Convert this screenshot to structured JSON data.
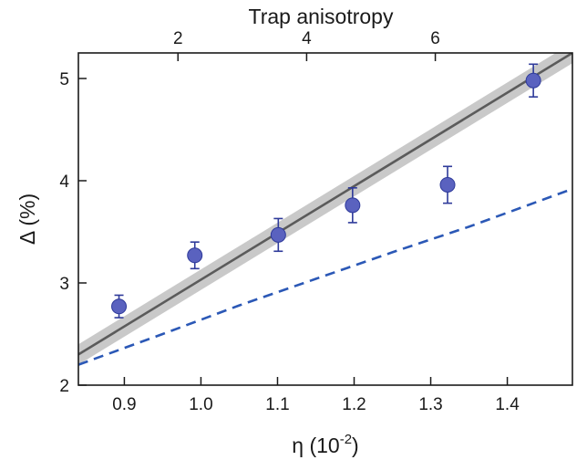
{
  "chart_data": {
    "type": "scatter",
    "title": "",
    "xlabel": "η (10",
    "xlabel_exponent": "-2",
    "xlabel_close": ")",
    "ylabel": "Δ (%)",
    "top_xlabel": "Trap anisotropy",
    "xlim": [
      0.84,
      1.485
    ],
    "ylim": [
      2.0,
      5.25
    ],
    "x_ticks": [
      0.9,
      1.0,
      1.1,
      1.2,
      1.3,
      1.4
    ],
    "x_tick_labels": [
      "0.9",
      "1.0",
      "1.1",
      "1.2",
      "1.3",
      "1.4"
    ],
    "y_ticks": [
      2,
      3,
      4,
      5
    ],
    "y_tick_labels": [
      "2",
      "3",
      "4",
      "5"
    ],
    "top_ticks": [
      {
        "x": 0.97,
        "label": "2"
      },
      {
        "x": 1.138,
        "label": "4"
      },
      {
        "x": 1.306,
        "label": "6"
      }
    ],
    "grid": false,
    "series": [
      {
        "kind": "points",
        "color": "#5a62bf",
        "edge_color": "#2e3a9a",
        "points": [
          {
            "x": 0.893,
            "y": 2.77,
            "err": 0.11
          },
          {
            "x": 0.992,
            "y": 3.27,
            "err": 0.13
          },
          {
            "x": 1.101,
            "y": 3.47,
            "err": 0.16
          },
          {
            "x": 1.198,
            "y": 3.76,
            "err": 0.17
          },
          {
            "x": 1.322,
            "y": 3.96,
            "err": 0.18
          },
          {
            "x": 1.434,
            "y": 4.98,
            "err": 0.16
          }
        ]
      },
      {
        "kind": "band_line",
        "line_color": "#5b5b5b",
        "band_color": "#c9c9c9",
        "band_half_width": 0.1,
        "x": [
          0.84,
          1.485
        ],
        "y": [
          2.3,
          5.25
        ]
      },
      {
        "kind": "dashed_line",
        "color": "#2b58b6",
        "x": [
          0.84,
          0.95,
          1.05,
          1.15,
          1.25,
          1.35,
          1.485
        ],
        "y": [
          2.2,
          2.5,
          2.78,
          3.04,
          3.3,
          3.55,
          3.92
        ]
      }
    ]
  }
}
